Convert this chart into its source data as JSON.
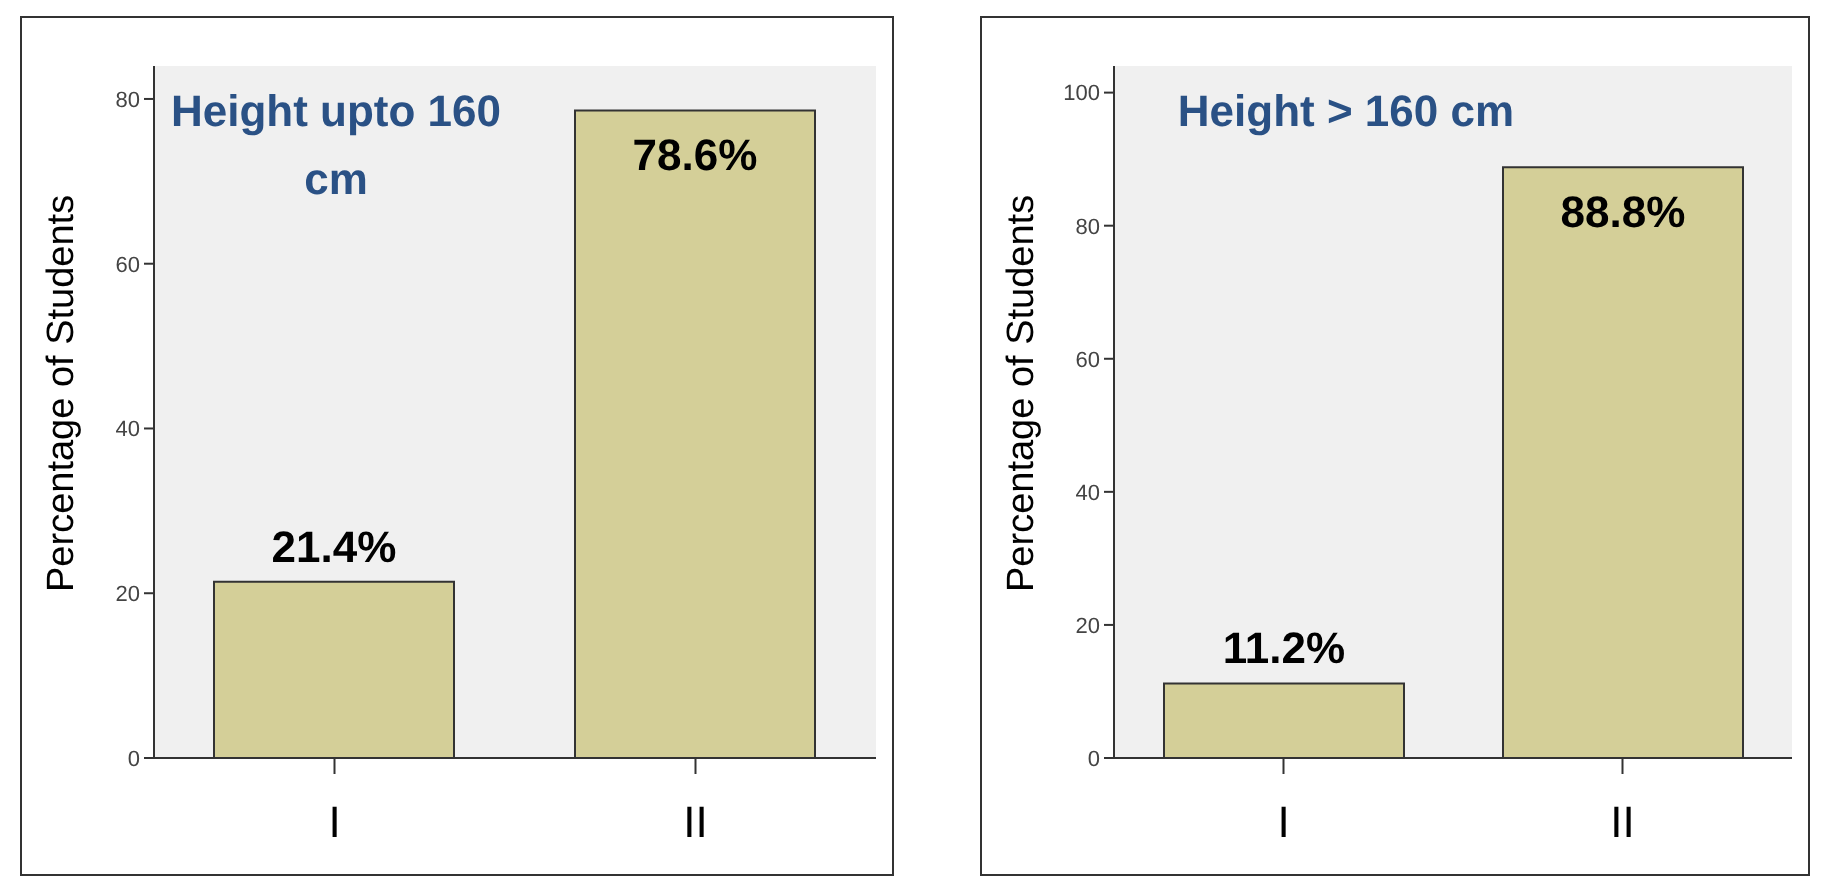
{
  "chart_data": [
    {
      "type": "bar",
      "title": "Height upto 160 cm",
      "ylabel": "Percentage of Students",
      "categories": [
        "I",
        "II"
      ],
      "values": [
        21.4,
        78.6
      ],
      "value_labels": [
        "21.4%",
        "78.6%"
      ],
      "color": "#d4cf98",
      "ylim": [
        0,
        84
      ],
      "yticks": [
        0,
        20,
        40,
        60,
        80
      ]
    },
    {
      "type": "bar",
      "title": "Height > 160 cm",
      "ylabel": "Percentage of Students",
      "categories": [
        "I",
        "II"
      ],
      "values": [
        11.2,
        88.8
      ],
      "value_labels": [
        "11.2%",
        "88.8%"
      ],
      "color": "#d4cf98",
      "ylim": [
        0,
        104
      ],
      "yticks": [
        0,
        20,
        40,
        60,
        80,
        100
      ]
    }
  ]
}
